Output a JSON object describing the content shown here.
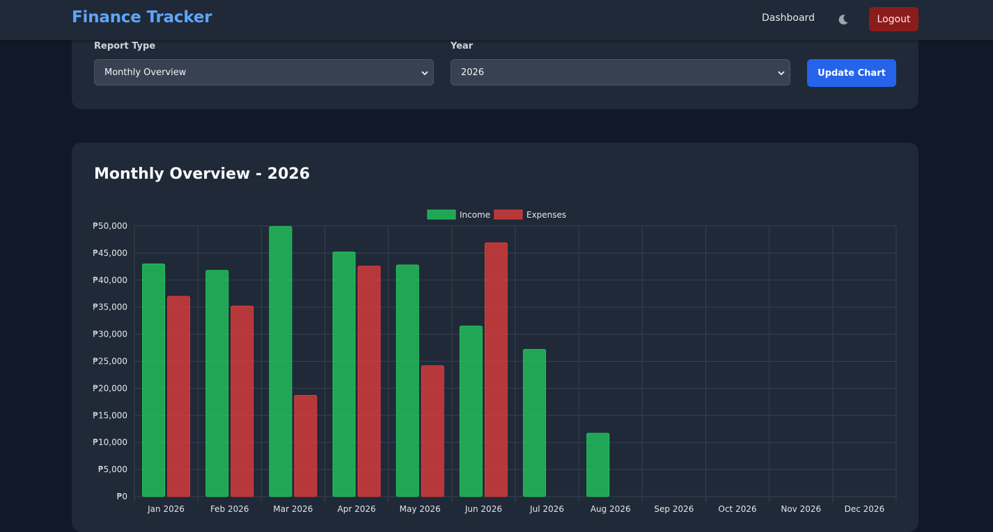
{
  "navbar": {
    "brand": "Finance Tracker",
    "dashboard_link": "Dashboard",
    "theme_icon": "moon-icon",
    "logout_label": "Logout"
  },
  "filters": {
    "report_type_label": "Report Type",
    "report_type_value": "Monthly Overview",
    "year_label": "Year",
    "year_value": "2026",
    "update_label": "Update Chart"
  },
  "chart_card": {
    "title": "Monthly Overview - 2026"
  },
  "colors": {
    "income": "#22c55e",
    "expenses": "#dc3c3c",
    "accent": "#2563eb",
    "brand": "#60a5fa"
  },
  "chart_data": {
    "type": "bar",
    "categories": [
      "Jan 2026",
      "Feb 2026",
      "Mar 2026",
      "Apr 2026",
      "May 2026",
      "Jun 2026",
      "Jul 2026",
      "Aug 2026",
      "Sep 2026",
      "Oct 2026",
      "Nov 2026",
      "Dec 2026"
    ],
    "series": [
      {
        "name": "Income",
        "values": [
          43000,
          41800,
          49900,
          45200,
          42800,
          31500,
          27200,
          11700,
          0,
          0,
          0,
          0
        ]
      },
      {
        "name": "Expenses",
        "values": [
          37000,
          35200,
          18700,
          42600,
          24200,
          46900,
          0,
          0,
          0,
          0,
          0,
          0
        ]
      }
    ],
    "ylim": [
      0,
      50000
    ],
    "yticks": [
      "₱0",
      "₱5,000",
      "₱10,000",
      "₱15,000",
      "₱20,000",
      "₱25,000",
      "₱30,000",
      "₱35,000",
      "₱40,000",
      "₱45,000",
      "₱50,000"
    ],
    "legend_position": "top-center",
    "grid": true
  }
}
